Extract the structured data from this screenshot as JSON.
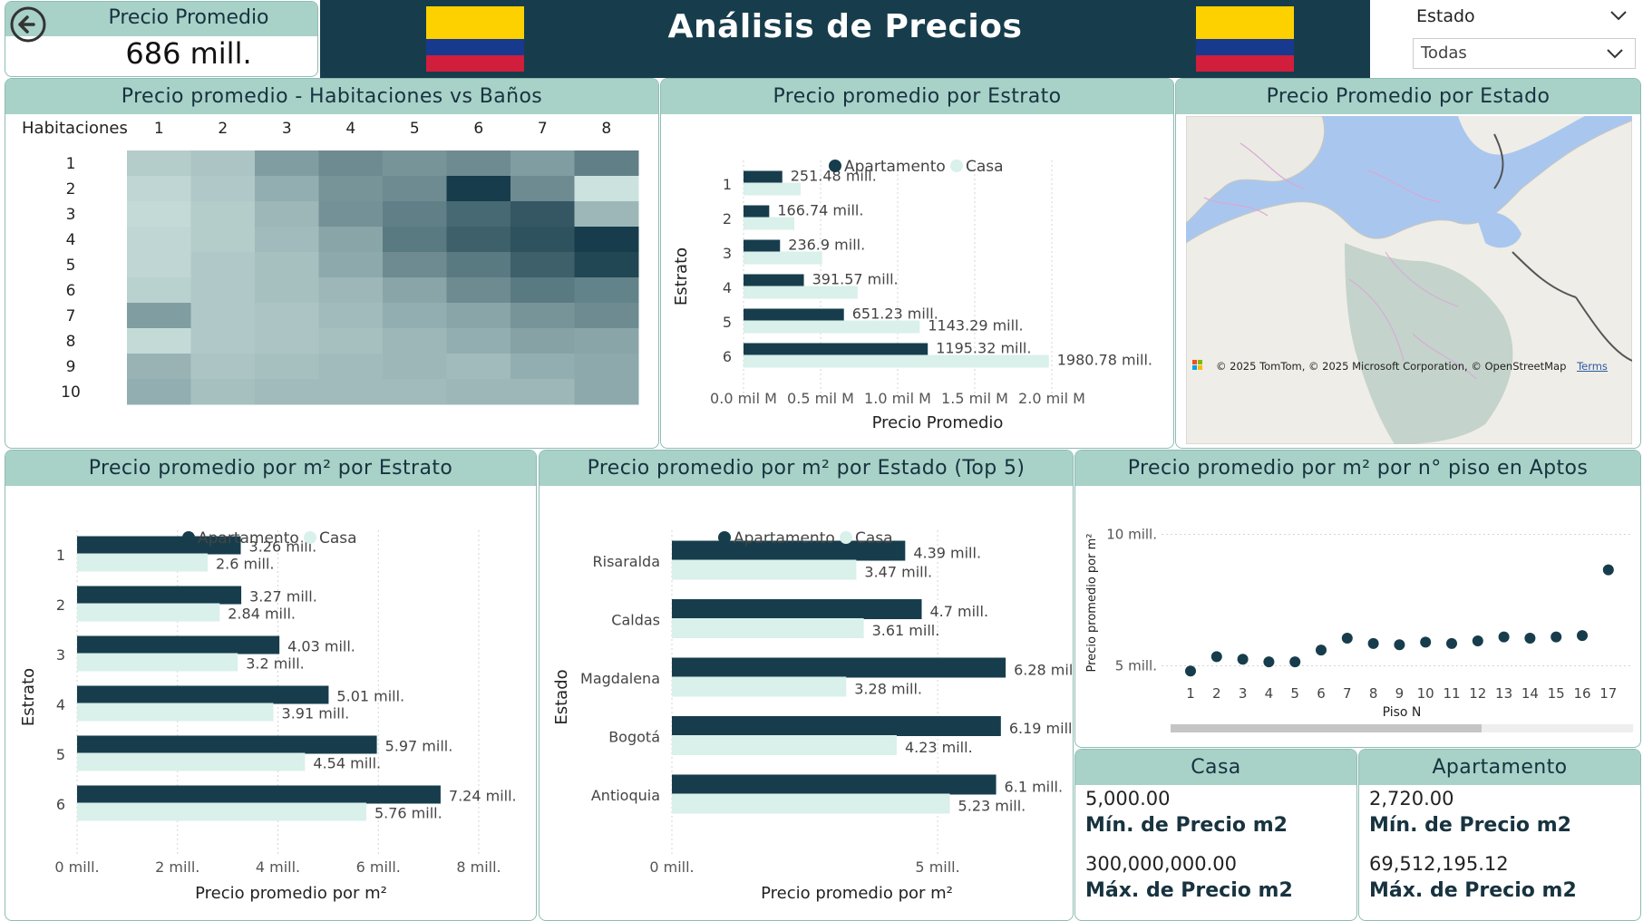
{
  "kpi": {
    "label": "Precio Promedio",
    "value": "686 mill."
  },
  "header": {
    "title": "Análisis de Precios"
  },
  "filter": {
    "label": "Estado",
    "value": "Todas"
  },
  "colors": {
    "apartamento": "#173d4c",
    "casa": "#d9f0eb",
    "header_bg": "#173d4c",
    "card_head": "#a8d1c8"
  },
  "heatmap": {
    "title": "Precio promedio - Habitaciones vs Baños",
    "corner_label": "Habitaciones",
    "cols": [
      "1",
      "2",
      "3",
      "4",
      "5",
      "6",
      "7",
      "8"
    ],
    "rows": [
      "1",
      "2",
      "3",
      "4",
      "5",
      "6",
      "7",
      "8",
      "9",
      "10"
    ]
  },
  "estrato_chart": {
    "title": "Precio promedio por Estrato",
    "legend": [
      "Apartamento",
      "Casa"
    ],
    "ylabel": "Estrato",
    "xlabel": "Precio Promedio",
    "x_ticks": [
      "0.0 mil M",
      "0.5 mil M",
      "1.0 mil M",
      "1.5 mil M",
      "2.0 mil M"
    ]
  },
  "map": {
    "title": "Precio Promedio por Estado",
    "attribution": "© 2025 TomTom, © 2025 Microsoft Corporation, © OpenStreetMap",
    "terms": "Terms",
    "logo_text": "M"
  },
  "m2_estrato_chart": {
    "title": "Precio promedio por m² por Estrato",
    "legend": [
      "Apartamento",
      "Casa"
    ],
    "ylabel": "Estrato",
    "xlabel": "Precio promedio por m²",
    "x_ticks": [
      "0 mill.",
      "2 mill.",
      "4 mill.",
      "6 mill.",
      "8 mill."
    ]
  },
  "m2_estado_chart": {
    "title": "Precio promedio por m² por Estado (Top 5)",
    "legend": [
      "Apartamento",
      "Casa"
    ],
    "ylabel": "Estado",
    "xlabel": "Precio promedio por m²",
    "x_ticks": [
      "0 mill.",
      "5 mill."
    ]
  },
  "piso_chart": {
    "title": "Precio promedio por m² por n° piso en Aptos",
    "ylabel": "Precio promedio por m²",
    "xlabel": "Piso N",
    "y_ticks": [
      "10 mill.",
      "5 mill."
    ]
  },
  "casa_card": {
    "title": "Casa",
    "min_value": "5,000.00",
    "min_label": "Mín. de Precio m2",
    "max_value": "300,000,000.00",
    "max_label": "Máx. de Precio m2"
  },
  "apto_card": {
    "title": "Apartamento",
    "min_value": "2,720.00",
    "min_label": "Mín. de Precio m2",
    "max_value": "69,512,195.12",
    "max_label": "Máx. de Precio m2"
  },
  "chart_data": [
    {
      "type": "heatmap",
      "title": "Precio promedio - Habitaciones vs Baños",
      "x": [
        "1",
        "2",
        "3",
        "4",
        "5",
        "6",
        "7",
        "8"
      ],
      "y": [
        "1",
        "2",
        "3",
        "4",
        "5",
        "6",
        "7",
        "8",
        "9",
        "10"
      ],
      "values": [
        [
          0.18,
          0.22,
          0.45,
          0.55,
          0.5,
          0.55,
          0.45,
          0.62
        ],
        [
          0.12,
          0.2,
          0.35,
          0.5,
          0.55,
          1.0,
          0.55,
          0.05
        ],
        [
          0.1,
          0.18,
          0.3,
          0.52,
          0.62,
          0.75,
          0.85,
          0.3
        ],
        [
          0.12,
          0.18,
          0.28,
          0.4,
          0.65,
          0.8,
          0.88,
          1.0
        ],
        [
          0.12,
          0.2,
          0.25,
          0.38,
          0.55,
          0.65,
          0.8,
          0.95
        ],
        [
          0.15,
          0.2,
          0.25,
          0.3,
          0.4,
          0.55,
          0.65,
          0.6
        ],
        [
          0.45,
          0.2,
          0.22,
          0.28,
          0.35,
          0.4,
          0.5,
          0.55
        ],
        [
          0.1,
          0.2,
          0.22,
          0.25,
          0.3,
          0.35,
          0.42,
          0.4
        ],
        [
          0.32,
          0.22,
          0.25,
          0.28,
          0.3,
          0.28,
          0.35,
          0.38
        ],
        [
          0.35,
          0.25,
          0.28,
          0.28,
          0.28,
          0.3,
          0.3,
          0.38
        ]
      ]
    },
    {
      "type": "bar",
      "title": "Precio promedio por Estrato",
      "categories": [
        "1",
        "2",
        "3",
        "4",
        "5",
        "6"
      ],
      "series": [
        {
          "name": "Apartamento",
          "values": [
            251.48,
            166.74,
            236.9,
            391.57,
            651.23,
            1195.32
          ],
          "labels": [
            "251.48 mill.",
            "166.74 mill.",
            "236.9 mill.",
            "391.57 mill.",
            "651.23 mill.",
            "1195.32 mill."
          ]
        },
        {
          "name": "Casa",
          "values": [
            370,
            330,
            510,
            740,
            1143.29,
            1980.78
          ],
          "labels": [
            "",
            "",
            "",
            "",
            "1143.29 mill.",
            "1980.78 mill."
          ]
        }
      ],
      "xlim": [
        0,
        2000
      ]
    },
    {
      "type": "bar",
      "title": "Precio promedio por m² por Estrato",
      "categories": [
        "1",
        "2",
        "3",
        "4",
        "5",
        "6"
      ],
      "series": [
        {
          "name": "Apartamento",
          "values": [
            3.26,
            3.27,
            4.03,
            5.01,
            5.97,
            7.24
          ],
          "labels": [
            "3.26 mill.",
            "3.27 mill.",
            "4.03 mill.",
            "5.01 mill.",
            "5.97 mill.",
            "7.24 mill."
          ]
        },
        {
          "name": "Casa",
          "values": [
            2.6,
            2.84,
            3.2,
            3.91,
            4.54,
            5.76
          ],
          "labels": [
            "2.6 mill.",
            "2.84 mill.",
            "3.2 mill.",
            "3.91 mill.",
            "4.54 mill.",
            "5.76 mill."
          ]
        }
      ],
      "xlim": [
        0,
        8
      ]
    },
    {
      "type": "bar",
      "title": "Precio promedio por m² por Estado (Top 5)",
      "categories": [
        "Risaralda",
        "Caldas",
        "Magdalena",
        "Bogotá",
        "Antioquia"
      ],
      "series": [
        {
          "name": "Apartamento",
          "values": [
            4.39,
            4.7,
            6.28,
            6.19,
            6.1
          ],
          "labels": [
            "4.39 mill.",
            "4.7 mill.",
            "6.28 mill.",
            "6.19 mill.",
            "6.1 mill."
          ]
        },
        {
          "name": "Casa",
          "values": [
            3.47,
            3.61,
            3.28,
            4.23,
            5.23
          ],
          "labels": [
            "3.47 mill.",
            "3.61 mill.",
            "3.28 mill.",
            "4.23 mill.",
            "5.23 mill."
          ]
        }
      ],
      "xlim": [
        0,
        6.5
      ]
    },
    {
      "type": "scatter",
      "title": "Precio promedio por m² por n° piso en Aptos",
      "x": [
        1,
        2,
        3,
        4,
        5,
        6,
        7,
        8,
        9,
        10,
        11,
        12,
        13,
        14,
        15,
        16,
        17
      ],
      "y": [
        4.8,
        5.35,
        5.25,
        5.15,
        5.15,
        5.6,
        6.05,
        5.85,
        5.8,
        5.9,
        5.85,
        5.95,
        6.1,
        6.05,
        6.1,
        6.15,
        8.65
      ],
      "ylim": [
        4.5,
        10.5
      ]
    }
  ]
}
